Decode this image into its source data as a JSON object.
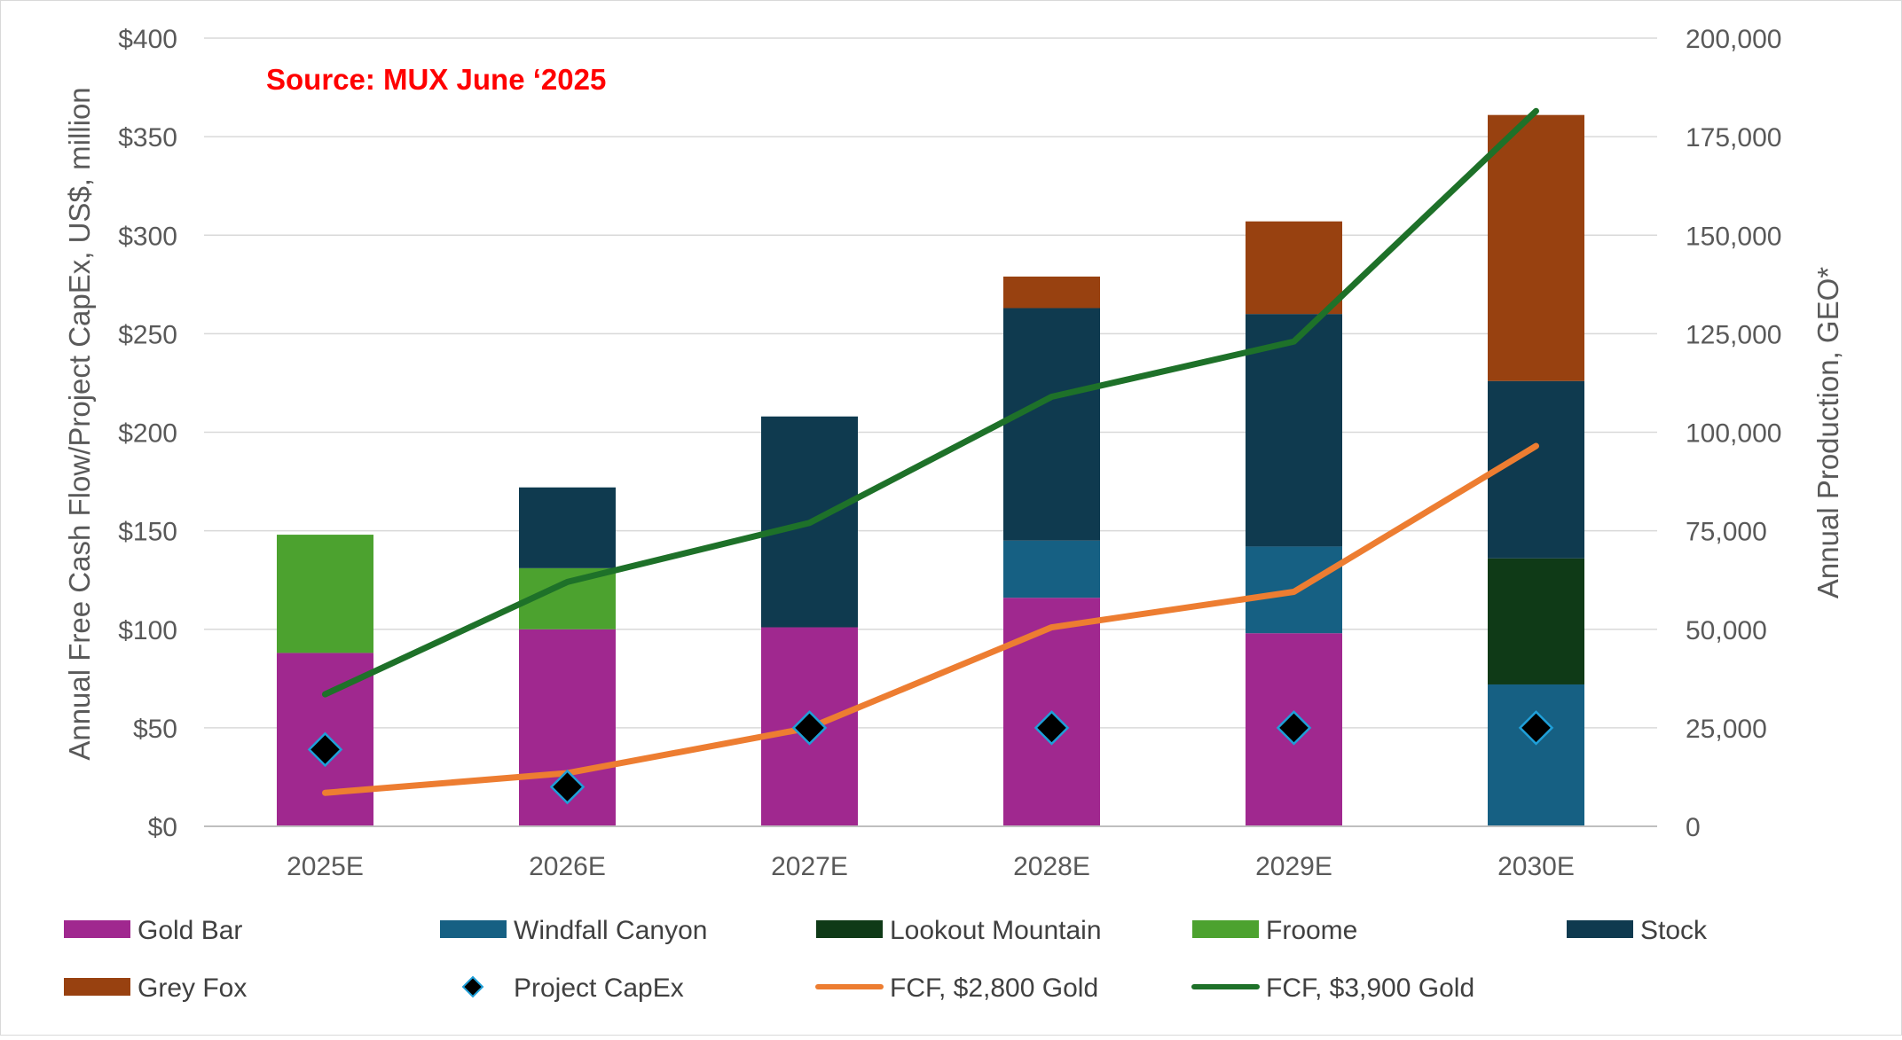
{
  "chart_data": {
    "type": "bar",
    "annotation": "Source: MUX June ‘2025",
    "categories": [
      "2025E",
      "2026E",
      "2027E",
      "2028E",
      "2029E",
      "2030E"
    ],
    "y_left": {
      "label": "Annual Free Cash Flow/Project CapEx, US$, million",
      "ticks": [
        "$0",
        "$50",
        "$100",
        "$150",
        "$200",
        "$250",
        "$300",
        "$350",
        "$400"
      ],
      "ylim": [
        0,
        400
      ]
    },
    "y_right": {
      "label": "Annual Production, GEO*",
      "ticks": [
        "0",
        "25,000",
        "50,000",
        "75,000",
        "100,000",
        "125,000",
        "150,000",
        "175,000",
        "200,000"
      ],
      "ylim": [
        0,
        200000
      ]
    },
    "grid": "horizontal",
    "legend_position": "bottom",
    "stacked_series": [
      {
        "name": "Gold Bar",
        "color": "#A0288F",
        "values": [
          44000,
          50000,
          50500,
          58000,
          49000,
          0
        ]
      },
      {
        "name": "Windfall Canyon",
        "color": "#166083",
        "values": [
          0,
          0,
          0,
          14500,
          22000,
          36000
        ]
      },
      {
        "name": "Lookout Mountain",
        "color": "#0F3A17",
        "values": [
          0,
          0,
          0,
          0,
          0,
          32000
        ]
      },
      {
        "name": "Froome",
        "color": "#4CA22F",
        "values": [
          30000,
          15500,
          0,
          0,
          0,
          0
        ]
      },
      {
        "name": "Stock",
        "color": "#0F3A4F",
        "values": [
          0,
          20500,
          53500,
          59000,
          59000,
          45000
        ]
      },
      {
        "name": "Grey Fox",
        "color": "#984110",
        "values": [
          0,
          0,
          0,
          8000,
          23500,
          67500
        ]
      }
    ],
    "capex_series": {
      "name": "Project CapEx",
      "marker": "diamond",
      "color": "#000000",
      "edge_color": "#1F9FD8",
      "values": [
        39,
        20,
        50,
        50,
        50,
        50
      ]
    },
    "line_series": [
      {
        "name": "FCF, $2,800 Gold",
        "color": "#ED7D31",
        "values": [
          17,
          27,
          50,
          101,
          119,
          193
        ]
      },
      {
        "name": "FCF, $3,900 Gold",
        "color": "#1E7129",
        "values": [
          67,
          124,
          154,
          218,
          246,
          363
        ]
      }
    ]
  },
  "legend": [
    {
      "label": "Gold Bar",
      "symbol": "box",
      "color": "#A0288F"
    },
    {
      "label": "Windfall Canyon",
      "symbol": "box",
      "color": "#166083"
    },
    {
      "label": "Lookout Mountain",
      "symbol": "box",
      "color": "#0F3A17"
    },
    {
      "label": "Froome",
      "symbol": "box",
      "color": "#4CA22F"
    },
    {
      "label": "Stock",
      "symbol": "box",
      "color": "#0F3A4F"
    },
    {
      "label": "Grey Fox",
      "symbol": "box",
      "color": "#984110"
    },
    {
      "label": "Project CapEx",
      "symbol": "diamond",
      "color": "#000000"
    },
    {
      "label": "FCF, $2,800 Gold",
      "symbol": "line",
      "color": "#ED7D31"
    },
    {
      "label": "FCF, $3,900 Gold",
      "symbol": "line",
      "color": "#1E7129"
    }
  ]
}
